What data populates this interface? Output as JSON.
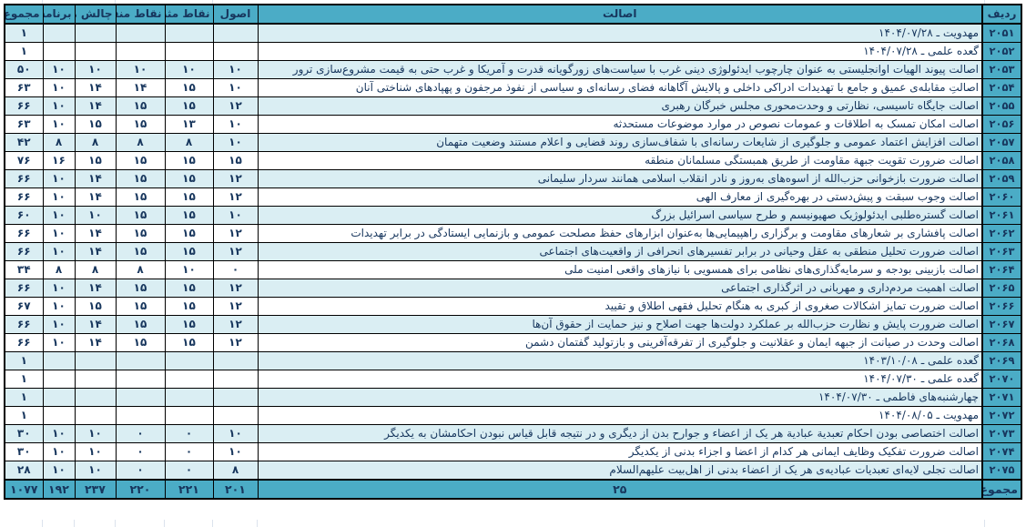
{
  "colors": {
    "accent_teal": "#4BACC6",
    "row_band_light_blue": "#DAEEF3",
    "text_navy": "#17365D",
    "border_black": "#000000"
  },
  "table": {
    "headers": {
      "radif": "ردیف",
      "esalat": "اصالت",
      "osul": "اصول",
      "noqat_mosbat": "نقاط مثبت",
      "noqat_manfi": "نقاط منفی",
      "chalesh_ha": "چالش ها",
      "barname": "برنامه",
      "majmu": "مجموع"
    },
    "rows": [
      {
        "id": "۲۰۵۱",
        "esalat": "مهدویت ـ ۱۴۰۴/۰۷/۲۸",
        "osul": "",
        "mosbat": "",
        "manfi": "",
        "chalesh": "",
        "barname": "",
        "majmu": "۱"
      },
      {
        "id": "۲۰۵۲",
        "esalat": "گعده علمی ـ ۱۴۰۴/۰۷/۲۸",
        "osul": "",
        "mosbat": "",
        "manfi": "",
        "chalesh": "",
        "barname": "",
        "majmu": "۱"
      },
      {
        "id": "۲۰۵۳",
        "esalat": "اصالت پیوند الهیات اوانجلیستی به عنوان چارچوب ایدئولوژی دینی غرب با سیاست‌های زورگویانه قدرت و آمریکا و غرب حتی به قیمت مشروع‌سازی ترور",
        "osul": "۱۰",
        "mosbat": "۱۰",
        "manfi": "۱۰",
        "chalesh": "۱۰",
        "barname": "۱۰",
        "majmu": "۵۰"
      },
      {
        "id": "۲۰۵۴",
        "esalat": "اصالتِ مقابله‌ی عمیق و جامع با تهدیدات ادراکی داخلی و پالایش آگاهانه فضای رسانه‌ای و سیاسی از نفوذ مرجفون و پهپادهای شناختی آنان",
        "osul": "۱۰",
        "mosbat": "۱۵",
        "manfi": "۱۴",
        "chalesh": "۱۴",
        "barname": "۱۰",
        "majmu": "۶۳"
      },
      {
        "id": "۲۰۵۵",
        "esalat": "اصالت جایگاه تاسیسی، نظارتی و وحدت‌محوری مجلس خبرگان رهبری",
        "osul": "۱۲",
        "mosbat": "۱۵",
        "manfi": "۱۵",
        "chalesh": "۱۴",
        "barname": "۱۰",
        "majmu": "۶۶"
      },
      {
        "id": "۲۰۵۶",
        "esalat": "اصالت امکان تمسک به اطلاقات و عمومات نصوص در موارد موضوعات مستحدثه",
        "osul": "۱۰",
        "mosbat": "۱۳",
        "manfi": "۱۵",
        "chalesh": "۱۵",
        "barname": "۱۰",
        "majmu": "۶۳"
      },
      {
        "id": "۲۰۵۷",
        "esalat": "اصالت افزایش اعتماد عمومی و جلوگیری از شایعات رسانه‌ای با شفاف‌سازی روند قضایی و اعلام مستند وضعیت متهمان",
        "osul": "۱۰",
        "mosbat": "۸",
        "manfi": "۸",
        "chalesh": "۸",
        "barname": "۸",
        "majmu": "۴۲"
      },
      {
        "id": "۲۰۵۸",
        "esalat": "اصالت ضرورت تقویت جبهة مقاومت از طریق همبستگی مسلمانان منطقه",
        "osul": "۱۵",
        "mosbat": "۱۵",
        "manfi": "۱۵",
        "chalesh": "۱۵",
        "barname": "۱۶",
        "majmu": "۷۶"
      },
      {
        "id": "۲۰۵۹",
        "esalat": "اصالت ضرورت بازخوانی حزب‌الله از اسوه‌های به‌روز و نادر انقلاب اسلامی همانند سردار سلیمانی",
        "osul": "۱۲",
        "mosbat": "۱۵",
        "manfi": "۱۵",
        "chalesh": "۱۴",
        "barname": "۱۰",
        "majmu": "۶۶"
      },
      {
        "id": "۲۰۶۰",
        "esalat": "اصالت وجوب سبقت و پیش‌دستی در بهره‌گیری از معارف الهی",
        "osul": "۱۲",
        "mosbat": "۱۵",
        "manfi": "۱۵",
        "chalesh": "۱۴",
        "barname": "۱۰",
        "majmu": "۶۶"
      },
      {
        "id": "۲۰۶۱",
        "esalat": "اصالت گستره‌طلبی ایدئولوژیک صهیونیسم و طرح سیاسی اسرائیل بزرگ",
        "osul": "۱۰",
        "mosbat": "۱۵",
        "manfi": "۱۵",
        "chalesh": "۱۰",
        "barname": "۱۰",
        "majmu": "۶۰"
      },
      {
        "id": "۲۰۶۲",
        "esalat": "اصالت پافشاری بر شعارهای مقاومت و برگزاری راهپیمایی‌ها به‌عنوان ابزارهای حفظ مصلحت عمومی و بازنمایی ایستادگی در برابر تهدیدات",
        "osul": "۱۲",
        "mosbat": "۱۵",
        "manfi": "۱۵",
        "chalesh": "۱۴",
        "barname": "۱۰",
        "majmu": "۶۶"
      },
      {
        "id": "۲۰۶۳",
        "esalat": "اصالت ضرورت تحلیل منطقی به عقل وحیانی در برابر تفسیرهای انحرافی از واقعیت‌های اجتماعی",
        "osul": "۱۲",
        "mosbat": "۱۵",
        "manfi": "۱۵",
        "chalesh": "۱۴",
        "barname": "۱۰",
        "majmu": "۶۶"
      },
      {
        "id": "۲۰۶۴",
        "esalat": "اصالت بازبینی بودجه و سرمایه‌گذاری‌های نظامی برای همسویی با نیازهای واقعی امنیت ملی",
        "osul": "۰",
        "mosbat": "۱۰",
        "manfi": "۸",
        "chalesh": "۸",
        "barname": "۸",
        "majmu": "۳۴"
      },
      {
        "id": "۲۰۶۵",
        "esalat": "اصالت اهمیت مردم‌داری و مهربانی در اثرگذاری اجتماعی",
        "osul": "۱۲",
        "mosbat": "۱۵",
        "manfi": "۱۵",
        "chalesh": "۱۴",
        "barname": "۱۰",
        "majmu": "۶۶"
      },
      {
        "id": "۲۰۶۶",
        "esalat": "اصالت ضرورت تمایز اشکالات صغروی از کبری به هنگام تحلیل فقهی اطلاق و تقیید",
        "osul": "۱۲",
        "mosbat": "۱۵",
        "manfi": "۱۵",
        "chalesh": "۱۵",
        "barname": "۱۰",
        "majmu": "۶۷"
      },
      {
        "id": "۲۰۶۷",
        "esalat": "اصالت ضرورت پایش و نظارت حزب‌الله بر عملکرد دولت‌ها جهت اصلاح و نیز حمایت از حقوق آن‌ها",
        "osul": "۱۲",
        "mosbat": "۱۵",
        "manfi": "۱۵",
        "chalesh": "۱۴",
        "barname": "۱۰",
        "majmu": "۶۶"
      },
      {
        "id": "۲۰۶۸",
        "esalat": "اصالت وحدت در صیانت از جبهه ایمان و عقلانیت و جلوگیری از تفرقه‌آفرینی و بازتولید گفتمان دشمن",
        "osul": "۱۲",
        "mosbat": "۱۵",
        "manfi": "۱۵",
        "chalesh": "۱۴",
        "barname": "۱۰",
        "majmu": "۶۶"
      },
      {
        "id": "۲۰۶۹",
        "esalat": "گعده علمی ـ ۱۴۰۳/۱۰/۰۸",
        "osul": "",
        "mosbat": "",
        "manfi": "",
        "chalesh": "",
        "barname": "",
        "majmu": "۱"
      },
      {
        "id": "۲۰۷۰",
        "esalat": "گعده علمی ـ ۱۴۰۴/۰۷/۳۰",
        "osul": "",
        "mosbat": "",
        "manfi": "",
        "chalesh": "",
        "barname": "",
        "majmu": "۱"
      },
      {
        "id": "۲۰۷۱",
        "esalat": "چهارشنبه‌های فاطمی ـ ۱۴۰۴/۰۷/۳۰",
        "osul": "",
        "mosbat": "",
        "manfi": "",
        "chalesh": "",
        "barname": "",
        "majmu": "۱"
      },
      {
        "id": "۲۰۷۲",
        "esalat": "مهدویت ـ ۱۴۰۴/۰۸/۰۵",
        "osul": "",
        "mosbat": "",
        "manfi": "",
        "chalesh": "",
        "barname": "",
        "majmu": "۱"
      },
      {
        "id": "۲۰۷۳",
        "esalat": "اصالت اختصاصی بودن احکام تعبدیة عبادیة هر یک از اعضاء و جوارح بدن از دیگری و در نتیجه قابل قیاس نبودن احکامشان به یکدیگر",
        "osul": "۱۰",
        "mosbat": "۰",
        "manfi": "۰",
        "chalesh": "۱۰",
        "barname": "۱۰",
        "majmu": "۳۰"
      },
      {
        "id": "۲۰۷۴",
        "esalat": "اصالت ضرورت تفکیک وظایف ایمانی هر کدام از اعضا و اجزاء بدنی از یکدیگر",
        "osul": "۱۰",
        "mosbat": "۰",
        "manfi": "۰",
        "chalesh": "۱۰",
        "barname": "۱۰",
        "majmu": "۳۰"
      },
      {
        "id": "۲۰۷۵",
        "esalat": "اصالت تجلی لایه‌ای تعبدیات عبادیه‌ی هر یک از اعضاء بدنی از اهل‌بیت علیهم‌السلام",
        "osul": "۸",
        "mosbat": "۰",
        "manfi": "۰",
        "chalesh": "۱۰",
        "barname": "۱۰",
        "majmu": "۲۸"
      }
    ],
    "total_row": {
      "label": "مجموع",
      "esalat": "۲۵",
      "osul": "۲۰۱",
      "mosbat": "۲۲۱",
      "manfi": "۲۲۰",
      "chalesh": "۲۳۷",
      "barname": "۱۹۲",
      "majmu": "۱۰۷۷"
    }
  }
}
